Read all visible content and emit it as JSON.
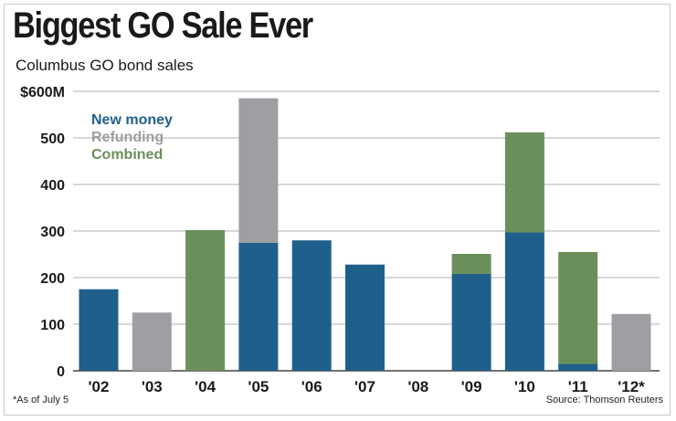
{
  "title": "Biggest GO Sale Ever",
  "subtitle": "Columbus GO bond sales",
  "footnote": "*As of July 5",
  "source": "Source: Thomson Reuters",
  "colors": {
    "new_money": "#1f5f8b",
    "refunding": "#9d9fa2",
    "combined": "#6b8f5a",
    "grid": "#b0b0b0"
  },
  "chart_data": {
    "type": "bar",
    "stacked": true,
    "title": "Biggest GO Sale Ever",
    "subtitle": "Columbus GO bond sales",
    "xlabel": "",
    "ylabel": "",
    "ylim": [
      0,
      600
    ],
    "y_ticks": [
      0,
      100,
      200,
      300,
      400,
      500,
      600
    ],
    "y_tick_labels": [
      "0",
      "100",
      "200",
      "300",
      "400",
      "500",
      "$600M"
    ],
    "categories": [
      "'02",
      "'03",
      "'04",
      "'05",
      "'06",
      "'07",
      "'08",
      "'09",
      "'10",
      "'11",
      "'12*"
    ],
    "legend_position": "top-left",
    "series": [
      {
        "name": "New money",
        "color_key": "new_money",
        "values": [
          175,
          0,
          0,
          275,
          280,
          228,
          0,
          208,
          297,
          15,
          0
        ]
      },
      {
        "name": "Refunding",
        "color_key": "refunding",
        "values": [
          0,
          125,
          0,
          310,
          0,
          0,
          0,
          0,
          0,
          0,
          122
        ]
      },
      {
        "name": "Combined",
        "color_key": "combined",
        "values": [
          0,
          0,
          302,
          0,
          0,
          0,
          0,
          43,
          215,
          240,
          0
        ]
      }
    ],
    "grid": true
  }
}
